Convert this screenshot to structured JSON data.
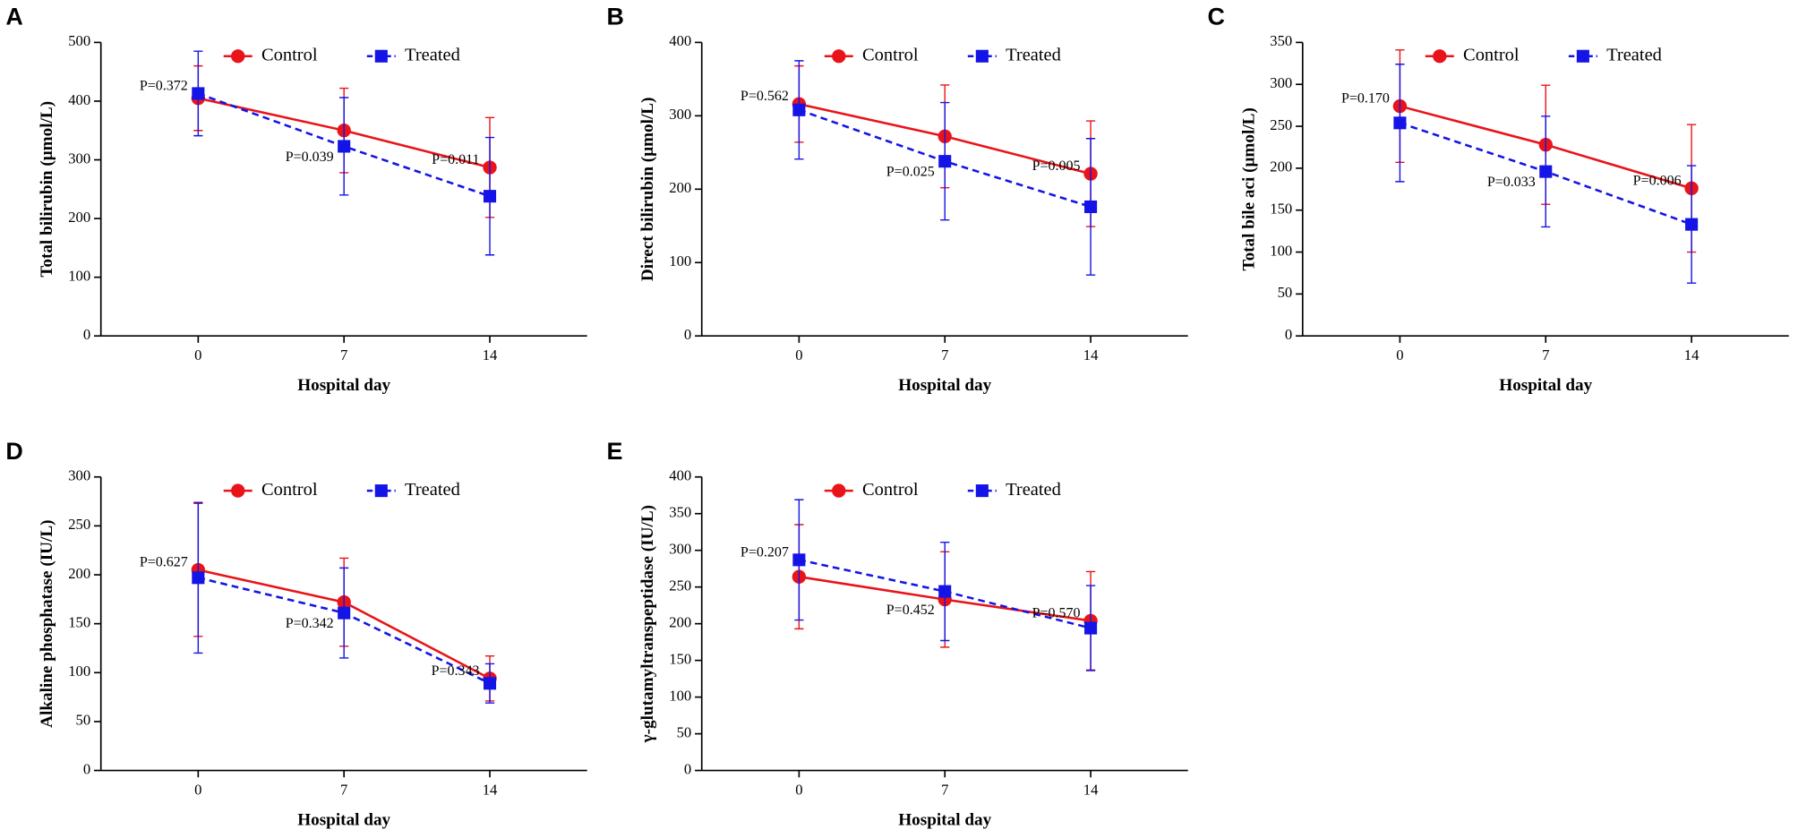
{
  "chart_data": [
    {
      "type": "line",
      "label": "A",
      "ylabel": "Total bilirubin (μmol/L)",
      "xlabel": "Hospital day",
      "x": [
        0,
        7,
        14
      ],
      "xlim": [
        -4.67,
        18.67
      ],
      "xticks": [
        0,
        7,
        14
      ],
      "ylim": [
        0,
        500
      ],
      "yticks": [
        0,
        100,
        200,
        300,
        400,
        500
      ],
      "series": [
        {
          "name": "Control",
          "color": "#e8141a",
          "marker": "circle",
          "dashed": false,
          "values": [
            405,
            350,
            287
          ],
          "errors": [
            55,
            72,
            85
          ]
        },
        {
          "name": "Treated",
          "color": "#1414e6",
          "marker": "square",
          "dashed": true,
          "values": [
            413,
            323,
            238
          ],
          "errors": [
            72,
            83,
            100
          ]
        }
      ],
      "annotations": [
        "P=0.372",
        "P=0.039",
        "P=0.011"
      ]
    },
    {
      "type": "line",
      "label": "B",
      "ylabel": "Direct bilirubin (μmol/L)",
      "xlabel": "Hospital day",
      "x": [
        0,
        7,
        14
      ],
      "xlim": [
        -4.67,
        18.67
      ],
      "xticks": [
        0,
        7,
        14
      ],
      "ylim": [
        0,
        400
      ],
      "yticks": [
        0,
        100,
        200,
        300,
        400
      ],
      "series": [
        {
          "name": "Control",
          "color": "#e8141a",
          "marker": "circle",
          "dashed": false,
          "values": [
            316,
            272,
            221
          ],
          "errors": [
            52,
            70,
            72
          ]
        },
        {
          "name": "Treated",
          "color": "#1414e6",
          "marker": "square",
          "dashed": true,
          "values": [
            308,
            238,
            176
          ],
          "errors": [
            67,
            80,
            93
          ]
        }
      ],
      "annotations": [
        "P=0.562",
        "P=0.025",
        "P=0.005"
      ]
    },
    {
      "type": "line",
      "label": "C",
      "ylabel": "Total bile aci (μmol/L)",
      "xlabel": "Hospital day",
      "x": [
        0,
        7,
        14
      ],
      "xlim": [
        -4.67,
        18.67
      ],
      "xticks": [
        0,
        7,
        14
      ],
      "ylim": [
        0,
        350
      ],
      "yticks": [
        0,
        50,
        100,
        150,
        200,
        250,
        300,
        350
      ],
      "series": [
        {
          "name": "Control",
          "color": "#e8141a",
          "marker": "circle",
          "dashed": false,
          "values": [
            274,
            228,
            176
          ],
          "errors": [
            67,
            71,
            76
          ]
        },
        {
          "name": "Treated",
          "color": "#1414e6",
          "marker": "square",
          "dashed": true,
          "values": [
            254,
            196,
            133
          ],
          "errors": [
            70,
            66,
            70
          ]
        }
      ],
      "annotations": [
        "P=0.170",
        "P=0.033",
        "P=0.006"
      ]
    },
    {
      "type": "line",
      "label": "D",
      "ylabel": "Alkaline phosphatase (IU/L)",
      "xlabel": "Hospital day",
      "x": [
        0,
        7,
        14
      ],
      "xlim": [
        -4.67,
        18.67
      ],
      "xticks": [
        0,
        7,
        14
      ],
      "ylim": [
        0,
        300
      ],
      "yticks": [
        0,
        50,
        100,
        150,
        200,
        250,
        300
      ],
      "series": [
        {
          "name": "Control",
          "color": "#e8141a",
          "marker": "circle",
          "dashed": false,
          "values": [
            205,
            172,
            94
          ],
          "errors": [
            68,
            45,
            23
          ]
        },
        {
          "name": "Treated",
          "color": "#1414e6",
          "marker": "square",
          "dashed": true,
          "values": [
            197,
            161,
            89
          ],
          "errors": [
            77,
            46,
            20
          ]
        }
      ],
      "annotations": [
        "P=0.627",
        "P=0.342",
        "P=0.343"
      ]
    },
    {
      "type": "line",
      "label": "E",
      "ylabel": "γ-glutamyltranspeptidase (IU/L)",
      "xlabel": "Hospital day",
      "x": [
        0,
        7,
        14
      ],
      "xlim": [
        -4.67,
        18.67
      ],
      "xticks": [
        0,
        7,
        14
      ],
      "ylim": [
        0,
        400
      ],
      "yticks": [
        0,
        50,
        100,
        150,
        200,
        250,
        300,
        350,
        400
      ],
      "series": [
        {
          "name": "Control",
          "color": "#e8141a",
          "marker": "circle",
          "dashed": false,
          "values": [
            264,
            233,
            204
          ],
          "errors": [
            71,
            65,
            67
          ]
        },
        {
          "name": "Treated",
          "color": "#1414e6",
          "marker": "square",
          "dashed": true,
          "values": [
            287,
            244,
            194
          ],
          "errors": [
            82,
            67,
            58
          ]
        }
      ],
      "annotations": [
        "P=0.207",
        "P=0.452",
        "P=0.570"
      ]
    }
  ]
}
